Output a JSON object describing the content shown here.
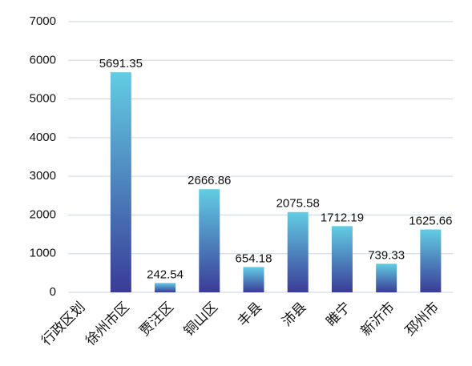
{
  "chart_data": {
    "type": "bar",
    "categories": [
      "行政区划",
      "徐州市区",
      "贾汪区",
      "铜山区",
      "丰县",
      "沛县",
      "睢宁",
      "新沂市",
      "邳州市"
    ],
    "values": [
      null,
      5691.35,
      242.54,
      2666.86,
      654.18,
      2075.58,
      1712.19,
      739.33,
      1625.66
    ],
    "color": [
      "#62cde3",
      "#3a3b98"
    ],
    "ylim": [
      0,
      7000
    ],
    "yticks": [
      0,
      1000,
      2000,
      3000,
      4000,
      5000,
      6000,
      7000
    ],
    "grid": true
  }
}
